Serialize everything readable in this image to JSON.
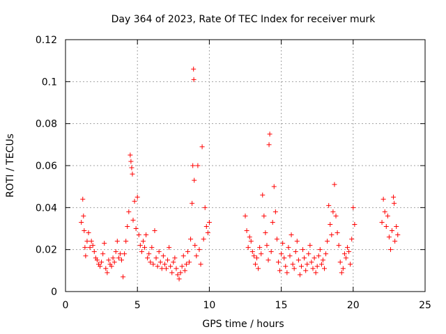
{
  "chart_data": {
    "type": "scatter",
    "title": "Day 364 of 2023, Rate Of TEC Index for receiver murk",
    "xlabel": "GPS time / hours",
    "ylabel": "ROTI / TECUs",
    "xlim": [
      0,
      25
    ],
    "ylim": [
      0,
      0.12
    ],
    "x_ticks": [
      0,
      5,
      10,
      15,
      20,
      25
    ],
    "x_tick_labels": [
      "0",
      "5",
      "10",
      "15",
      "20",
      "25"
    ],
    "y_ticks": [
      0,
      0.02,
      0.04,
      0.06,
      0.08,
      0.1,
      0.12
    ],
    "y_tick_labels": [
      "0",
      "0.02",
      "0.04",
      "0.06",
      "0.08",
      "0.1",
      "0.12"
    ],
    "grid": true,
    "marker": "plus",
    "color": "#ff0000",
    "series": [
      {
        "points": [
          [
            1.1,
            0.033
          ],
          [
            1.2,
            0.044
          ],
          [
            1.25,
            0.036
          ],
          [
            1.3,
            0.029
          ],
          [
            1.35,
            0.021
          ],
          [
            1.4,
            0.017
          ],
          [
            1.5,
            0.024
          ],
          [
            1.6,
            0.028
          ],
          [
            1.7,
            0.021
          ],
          [
            1.8,
            0.024
          ],
          [
            1.9,
            0.022
          ],
          [
            2.0,
            0.019
          ],
          [
            2.1,
            0.016
          ],
          [
            2.2,
            0.015
          ],
          [
            2.3,
            0.013
          ],
          [
            2.4,
            0.012
          ],
          [
            2.5,
            0.014
          ],
          [
            2.6,
            0.018
          ],
          [
            2.7,
            0.023
          ],
          [
            2.8,
            0.011
          ],
          [
            2.9,
            0.009
          ],
          [
            3.0,
            0.015
          ],
          [
            3.1,
            0.013
          ],
          [
            3.2,
            0.012
          ],
          [
            3.3,
            0.016
          ],
          [
            3.4,
            0.014
          ],
          [
            3.5,
            0.019
          ],
          [
            3.6,
            0.024
          ],
          [
            3.7,
            0.016
          ],
          [
            3.8,
            0.018
          ],
          [
            3.9,
            0.015
          ],
          [
            4.0,
            0.007
          ],
          [
            4.1,
            0.018
          ],
          [
            4.2,
            0.024
          ],
          [
            4.3,
            0.031
          ],
          [
            4.4,
            0.038
          ],
          [
            4.5,
            0.065
          ],
          [
            4.55,
            0.062
          ],
          [
            4.6,
            0.059
          ],
          [
            4.65,
            0.056
          ],
          [
            4.7,
            0.034
          ],
          [
            4.8,
            0.043
          ],
          [
            4.9,
            0.03
          ],
          [
            5.0,
            0.045
          ],
          [
            5.1,
            0.027
          ],
          [
            5.2,
            0.022
          ],
          [
            5.3,
            0.019
          ],
          [
            5.4,
            0.024
          ],
          [
            5.5,
            0.021
          ],
          [
            5.6,
            0.027
          ],
          [
            5.7,
            0.016
          ],
          [
            5.8,
            0.018
          ],
          [
            5.9,
            0.014
          ],
          [
            6.0,
            0.021
          ],
          [
            6.1,
            0.013
          ],
          [
            6.2,
            0.029
          ],
          [
            6.3,
            0.016
          ],
          [
            6.4,
            0.012
          ],
          [
            6.5,
            0.019
          ],
          [
            6.6,
            0.014
          ],
          [
            6.7,
            0.011
          ],
          [
            6.8,
            0.017
          ],
          [
            6.9,
            0.013
          ],
          [
            7.0,
            0.011
          ],
          [
            7.1,
            0.015
          ],
          [
            7.2,
            0.021
          ],
          [
            7.3,
            0.012
          ],
          [
            7.4,
            0.009
          ],
          [
            7.5,
            0.014
          ],
          [
            7.6,
            0.016
          ],
          [
            7.7,
            0.011
          ],
          [
            7.8,
            0.008
          ],
          [
            7.9,
            0.006
          ],
          [
            8.0,
            0.009
          ],
          [
            8.1,
            0.012
          ],
          [
            8.2,
            0.017
          ],
          [
            8.3,
            0.01
          ],
          [
            8.4,
            0.013
          ],
          [
            8.5,
            0.019
          ],
          [
            8.6,
            0.014
          ],
          [
            8.7,
            0.025
          ],
          [
            8.8,
            0.042
          ],
          [
            8.85,
            0.06
          ],
          [
            8.9,
            0.106
          ],
          [
            8.92,
            0.101
          ],
          [
            8.95,
            0.053
          ],
          [
            9.0,
            0.022
          ],
          [
            9.1,
            0.017
          ],
          [
            9.2,
            0.06
          ],
          [
            9.3,
            0.02
          ],
          [
            9.4,
            0.013
          ],
          [
            9.5,
            0.069
          ],
          [
            9.6,
            0.025
          ],
          [
            9.7,
            0.04
          ],
          [
            9.8,
            0.031
          ],
          [
            9.9,
            0.028
          ],
          [
            10.0,
            0.033
          ],
          [
            12.5,
            0.036
          ],
          [
            12.6,
            0.029
          ],
          [
            12.7,
            0.021
          ],
          [
            12.8,
            0.026
          ],
          [
            12.9,
            0.024
          ],
          [
            13.0,
            0.019
          ],
          [
            13.1,
            0.017
          ],
          [
            13.2,
            0.013
          ],
          [
            13.3,
            0.016
          ],
          [
            13.4,
            0.011
          ],
          [
            13.5,
            0.021
          ],
          [
            13.6,
            0.018
          ],
          [
            13.7,
            0.046
          ],
          [
            13.8,
            0.036
          ],
          [
            13.9,
            0.028
          ],
          [
            14.0,
            0.022
          ],
          [
            14.1,
            0.015
          ],
          [
            14.15,
            0.07
          ],
          [
            14.2,
            0.075
          ],
          [
            14.3,
            0.019
          ],
          [
            14.4,
            0.033
          ],
          [
            14.5,
            0.05
          ],
          [
            14.6,
            0.038
          ],
          [
            14.7,
            0.025
          ],
          [
            14.8,
            0.014
          ],
          [
            14.9,
            0.01
          ],
          [
            15.0,
            0.018
          ],
          [
            15.1,
            0.023
          ],
          [
            15.2,
            0.016
          ],
          [
            15.3,
            0.012
          ],
          [
            15.4,
            0.009
          ],
          [
            15.5,
            0.021
          ],
          [
            15.6,
            0.017
          ],
          [
            15.7,
            0.027
          ],
          [
            15.8,
            0.013
          ],
          [
            15.9,
            0.011
          ],
          [
            16.0,
            0.019
          ],
          [
            16.1,
            0.024
          ],
          [
            16.2,
            0.015
          ],
          [
            16.3,
            0.008
          ],
          [
            16.4,
            0.012
          ],
          [
            16.5,
            0.02
          ],
          [
            16.6,
            0.016
          ],
          [
            16.7,
            0.01
          ],
          [
            16.8,
            0.013
          ],
          [
            16.9,
            0.018
          ],
          [
            17.0,
            0.022
          ],
          [
            17.1,
            0.014
          ],
          [
            17.2,
            0.011
          ],
          [
            17.3,
            0.016
          ],
          [
            17.4,
            0.009
          ],
          [
            17.5,
            0.012
          ],
          [
            17.6,
            0.017
          ],
          [
            17.7,
            0.02
          ],
          [
            17.8,
            0.013
          ],
          [
            17.9,
            0.015
          ],
          [
            18.0,
            0.011
          ],
          [
            18.1,
            0.018
          ],
          [
            18.2,
            0.024
          ],
          [
            18.3,
            0.041
          ],
          [
            18.4,
            0.032
          ],
          [
            18.5,
            0.027
          ],
          [
            18.6,
            0.038
          ],
          [
            18.7,
            0.051
          ],
          [
            18.8,
            0.036
          ],
          [
            18.9,
            0.028
          ],
          [
            19.0,
            0.022
          ],
          [
            19.1,
            0.014
          ],
          [
            19.2,
            0.009
          ],
          [
            19.3,
            0.011
          ],
          [
            19.4,
            0.018
          ],
          [
            19.5,
            0.016
          ],
          [
            19.6,
            0.021
          ],
          [
            19.7,
            0.019
          ],
          [
            19.8,
            0.013
          ],
          [
            19.9,
            0.025
          ],
          [
            20.0,
            0.04
          ],
          [
            20.1,
            0.032
          ],
          [
            22.0,
            0.033
          ],
          [
            22.1,
            0.044
          ],
          [
            22.2,
            0.038
          ],
          [
            22.3,
            0.031
          ],
          [
            22.4,
            0.036
          ],
          [
            22.5,
            0.026
          ],
          [
            22.6,
            0.02
          ],
          [
            22.7,
            0.029
          ],
          [
            22.8,
            0.045
          ],
          [
            22.85,
            0.042
          ],
          [
            22.9,
            0.024
          ],
          [
            23.0,
            0.031
          ],
          [
            23.1,
            0.027
          ]
        ]
      }
    ]
  }
}
